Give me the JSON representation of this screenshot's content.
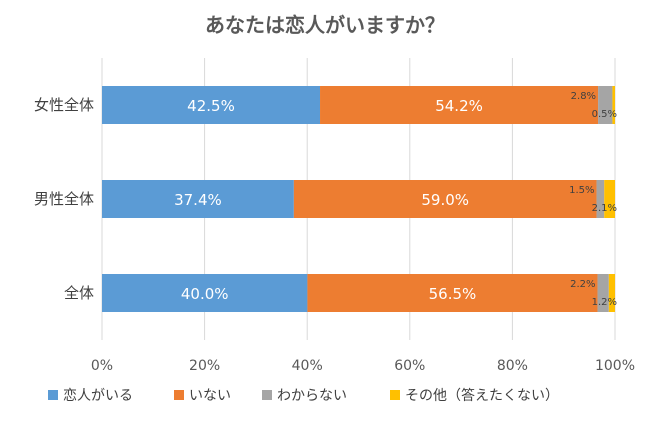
{
  "chart_data": {
    "type": "bar",
    "orientation": "horizontal",
    "stacked": "percent",
    "title": "あなたは恋人がいますか？",
    "categories": [
      "女性全体",
      "男性全体",
      "全体"
    ],
    "series": [
      {
        "name": "恋人がいる",
        "color": "#5b9bd5",
        "values": [
          42.5,
          37.4,
          40.0
        ],
        "labels": [
          "42.5%",
          "37.4%",
          "40.0%"
        ]
      },
      {
        "name": "いない",
        "color": "#ed7d31",
        "values": [
          54.2,
          59.0,
          56.5
        ],
        "labels": [
          "54.2%",
          "59.0%",
          "56.5%"
        ]
      },
      {
        "name": "わからない",
        "color": "#a5a5a5",
        "values": [
          2.8,
          1.5,
          2.2
        ],
        "labels": [
          "2.8%",
          "1.5%",
          "2.2%"
        ]
      },
      {
        "name": "その他（答えたくない）",
        "color": "#ffc000",
        "values": [
          0.5,
          2.1,
          1.2
        ],
        "labels": [
          "0.5%",
          "2.1%",
          "1.2%"
        ]
      }
    ],
    "xlim": [
      0,
      100
    ],
    "x_ticks": [
      0,
      20,
      40,
      60,
      80,
      100
    ],
    "x_tick_labels": [
      "0%",
      "20%",
      "40%",
      "60%",
      "80%",
      "100%"
    ],
    "grid": true,
    "legend_position": "bottom"
  }
}
